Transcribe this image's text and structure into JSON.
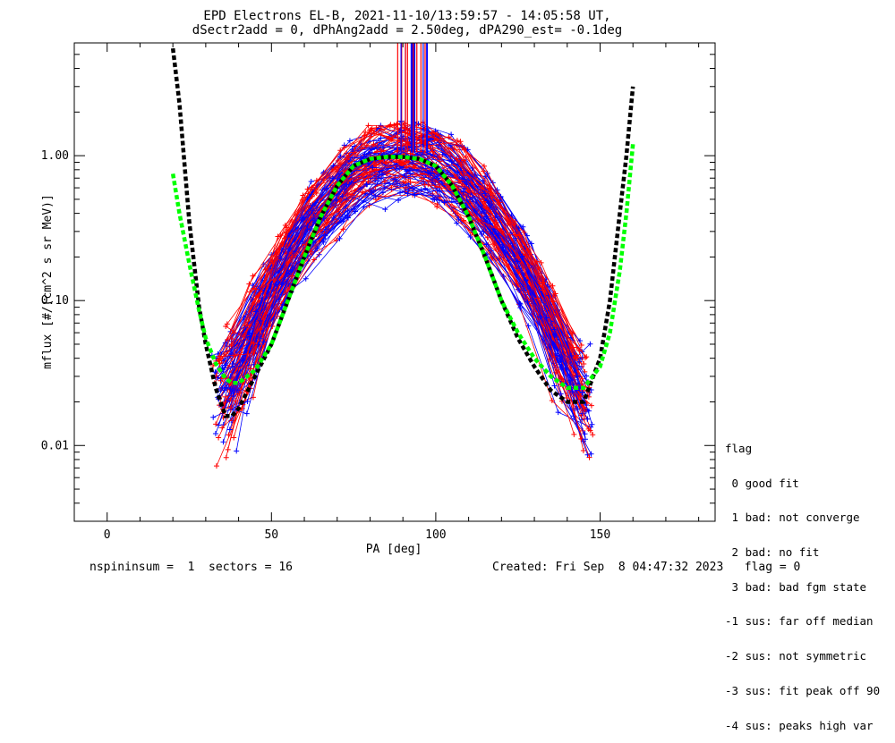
{
  "chart_data": {
    "type": "scatter",
    "title_line1": "EPD Electrons EL-B, 2021-11-10/13:59:57 - 14:05:58 UT,",
    "title_line2": "dSectr2add = 0, dPhAng2add = 2.50deg, dPA290_est=  -0.1deg",
    "xlabel": "PA [deg]",
    "ylabel": "mflux [#/(cm^2 s sr MeV)]",
    "xlim": [
      -10,
      185
    ],
    "ylim": [
      0.003,
      6
    ],
    "y_scale": "log",
    "x_ticks": [
      0,
      50,
      100,
      150
    ],
    "x_tick_labels": [
      "0",
      "50",
      "100",
      "150"
    ],
    "y_ticks": [
      0.01,
      0.1,
      1.0
    ],
    "y_tick_labels": [
      "0.01",
      "0.10",
      "1.00"
    ],
    "fit_curves": [
      {
        "color": "#000000",
        "x": [
          20,
          22,
          25,
          28,
          30,
          33,
          36,
          38,
          40,
          45,
          50,
          55,
          60,
          65,
          70,
          75,
          80,
          85,
          90,
          95,
          100,
          105,
          110,
          115,
          120,
          125,
          130,
          135,
          140,
          145,
          150,
          153,
          156,
          158,
          160
        ],
        "y": [
          5.5,
          2.3,
          0.35,
          0.09,
          0.05,
          0.025,
          0.016,
          0.016,
          0.018,
          0.03,
          0.05,
          0.1,
          0.2,
          0.38,
          0.62,
          0.85,
          0.95,
          0.98,
          0.98,
          0.95,
          0.85,
          0.62,
          0.38,
          0.2,
          0.1,
          0.055,
          0.035,
          0.024,
          0.02,
          0.02,
          0.04,
          0.1,
          0.4,
          1.0,
          3.0
        ]
      },
      {
        "color": "#00ff00",
        "x": [
          20,
          22,
          25,
          28,
          30,
          33,
          36,
          38,
          40,
          45,
          50,
          55,
          60,
          65,
          70,
          75,
          80,
          85,
          90,
          95,
          100,
          105,
          110,
          115,
          120,
          125,
          130,
          135,
          140,
          145,
          150,
          153,
          156,
          158,
          160
        ],
        "y": [
          0.75,
          0.4,
          0.18,
          0.085,
          0.055,
          0.037,
          0.029,
          0.027,
          0.027,
          0.033,
          0.05,
          0.1,
          0.2,
          0.38,
          0.62,
          0.85,
          0.95,
          0.98,
          0.98,
          0.95,
          0.85,
          0.62,
          0.38,
          0.2,
          0.1,
          0.06,
          0.04,
          0.03,
          0.025,
          0.025,
          0.035,
          0.06,
          0.16,
          0.4,
          1.2
        ]
      }
    ],
    "flag_legend_title": "flag",
    "flag_legend": [
      " 0 good fit",
      " 1 bad: not converge",
      " 2 bad: no fit",
      " 3 bad: bad fgm state",
      "-1 sus: far off median",
      "-2 sus: not symmetric",
      "-3 sus: fit peak off 90",
      "-4 sus: peaks high var"
    ],
    "footer_left": "nspininsum =  1  sectors = 16",
    "footer_right": "Created: Fri Sep  8 04:47:32 2023   flag = 0",
    "series_colors": [
      "#ff0000",
      "#0000ff"
    ]
  }
}
